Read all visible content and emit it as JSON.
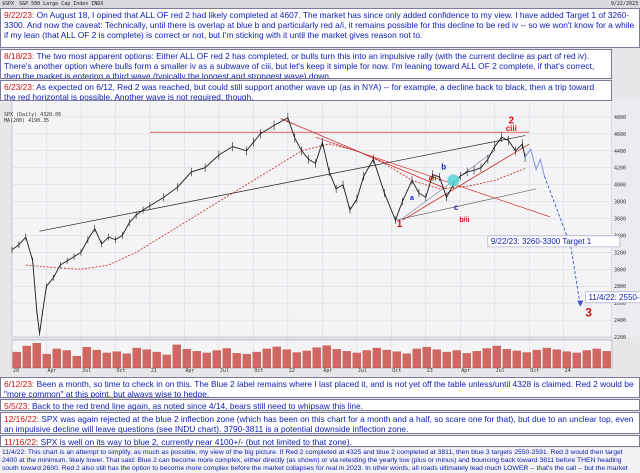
{
  "header": {
    "symbol": "$SPX",
    "name": "S&P 500 Large Cap Index  INDX",
    "right": "9/22/2023"
  },
  "legend": {
    "line1": "SPX (Daily) 4320.06",
    "line2": "MA(200) 4190.35"
  },
  "notes": {
    "n_9_22": {
      "date": "9/22/23:",
      "text": " On August 18, I opined that ALL OF red 2 had likely completed at 4607.  The market has since only added confidence to my view.  I have added Target 1 of 3260-3300.  And now the caveat:  Technically, until there is overlap at blue b and particularly red a/i, it remains possible for this decline to be red iv -- so we won't know for a while if my lean (that ALL OF 2 is complete) is correct or not, but I'm sticking with it until the market gives reason not to."
    },
    "n_8_18": {
      "date": "8/18/23:",
      "text": "  The two most apparent options: Either ALL OF red 2 has completed, or bulls turn this into an impulsive rally (with the current decline as part of red iv).  There's another option where bulls form a smaller iv as a subwave of ciii, but let's keep it simple for now.  I'm leaning toward ALL OF 2 complete, if that's correct, then the market is entering a third wave (typically the longest and strongest wave) down."
    },
    "n_6_23": {
      "date": "6/23/23:",
      "text": " As expected on 6/12, Red 2 was reached, but could still support another wave up (as in NYA) -- for example, a decline back to black, then a trip toward the red horizontal is possible.  Another wave is not required, though."
    },
    "n_6_12": {
      "date": "6/12/23:",
      "text": " Been a month, so time to check in on this.  The Blue 2 label remains where I last placed it, and is not yet off the table unless/until 4328 is claimed.  Red 2 would be \"more common\" at this point, but always wise to hedge."
    },
    "n_5_5": {
      "date": "5/5/23:",
      "text": "  Back to the red trend line again, as noted since 4/14, bears still need to whipsaw this line."
    },
    "n_12_16": {
      "date": "12/16/22:",
      "text": "  SPX was again rejected at the blue 2 inflection zone (which has been on this chart for a month and a half, so scare one for that), but due to an unclear top, even an impulsive decline will leave questions (see INDU chart).  3790-3811 is a potential downside inflection zone."
    },
    "n_11_16": {
      "date": "11/16/22:",
      "text": "  SPX is well on its way to blue 2, currently near 4100+/- (but not limited to that zone)."
    },
    "n_bottom": {
      "text": "11/4/22:  This chart is an attempt to simplify, as much as possible, my view of the big picture.  If Red 2 completed at 4325 and blue 2 completed at 3811, then blue 3 targets 2550-2591.  Red 3 would then target 2400 at the minimum, likely lower.  That said: Blue 2 can become more complex, either directly (as shown) or via retesting the yearly low (plus or minus) and bouncing back toward 3811 before THEN heading south toward 2600.  Red 2 also still has the option to become more complex before the market collapses for real in 2023.  In other words, all roads ultimately lead much LOWER -- that's the call -- but the market still has a few ways to get there."
    }
  },
  "annotations": {
    "target1": "9/22/23:  3260-3300 Target 1",
    "target2": "11/4/22: 2550-2591",
    "wave_1": "1",
    "wave_2": "2",
    "wave_3": "3",
    "wave_ciii": "ciii",
    "wave_b": "b",
    "wave_c": "c",
    "wave_a_i": "a/i",
    "wave_b_ii": "b/ii",
    "wave_a": "a",
    "red_color": "#d21212",
    "blue_color": "#0c1cb3"
  },
  "chart_data": {
    "type": "line",
    "title": "$SPX S&P 500 Large Cap Index INDX",
    "ylim": [
      2200,
      5000
    ],
    "yticks": [
      2200,
      2400,
      2600,
      2800,
      3000,
      3200,
      3400,
      3600,
      3800,
      4000,
      4200,
      4400,
      4600,
      4800
    ],
    "xlim": [
      2020.0,
      2024.35
    ],
    "xticks": [
      {
        "x": 2020.0,
        "label": "20"
      },
      {
        "x": 2020.25,
        "label": "Apr"
      },
      {
        "x": 2020.5,
        "label": "Jul"
      },
      {
        "x": 2020.75,
        "label": "Oct"
      },
      {
        "x": 2021.0,
        "label": "21"
      },
      {
        "x": 2021.25,
        "label": "Apr"
      },
      {
        "x": 2021.5,
        "label": "Jul"
      },
      {
        "x": 2021.75,
        "label": "Oct"
      },
      {
        "x": 2022.0,
        "label": "22"
      },
      {
        "x": 2022.25,
        "label": "Apr"
      },
      {
        "x": 2022.5,
        "label": "Jul"
      },
      {
        "x": 2022.75,
        "label": "Oct"
      },
      {
        "x": 2023.0,
        "label": "23"
      },
      {
        "x": 2023.25,
        "label": "Apr"
      },
      {
        "x": 2023.5,
        "label": "Jul"
      },
      {
        "x": 2023.75,
        "label": "Oct"
      },
      {
        "x": 2024.0,
        "label": "24"
      }
    ],
    "series": [
      {
        "name": "SPX",
        "x": [
          2020.0,
          2020.05,
          2020.1,
          2020.15,
          2020.18,
          2020.2,
          2020.22,
          2020.25,
          2020.3,
          2020.35,
          2020.4,
          2020.45,
          2020.5,
          2020.55,
          2020.6,
          2020.65,
          2020.7,
          2020.75,
          2020.8,
          2020.85,
          2020.9,
          2020.95,
          2021.0,
          2021.1,
          2021.2,
          2021.3,
          2021.4,
          2021.5,
          2021.6,
          2021.7,
          2021.75,
          2021.8,
          2021.9,
          2022.0,
          2022.05,
          2022.1,
          2022.15,
          2022.2,
          2022.25,
          2022.3,
          2022.35,
          2022.4,
          2022.45,
          2022.5,
          2022.55,
          2022.62,
          2022.7,
          2022.78,
          2022.83,
          2022.9,
          2022.95,
          2023.0,
          2023.05,
          2023.1,
          2023.15,
          2023.2,
          2023.25,
          2023.3,
          2023.35,
          2023.4,
          2023.45,
          2023.5,
          2023.55,
          2023.6,
          2023.65,
          2023.7,
          2023.72
        ],
        "y": [
          3230,
          3290,
          3380,
          3100,
          2500,
          2240,
          2480,
          2800,
          2900,
          3050,
          3100,
          3150,
          3200,
          3350,
          3480,
          3300,
          3380,
          3350,
          3400,
          3550,
          3640,
          3700,
          3750,
          3850,
          3970,
          4150,
          4200,
          4350,
          4450,
          4400,
          4500,
          4600,
          4700,
          4790,
          4550,
          4400,
          4300,
          4250,
          4500,
          4150,
          3950,
          4000,
          3700,
          3830,
          4100,
          4300,
          3900,
          3580,
          3800,
          4050,
          3900,
          3850,
          4120,
          4090,
          3850,
          4000,
          4100,
          4150,
          4170,
          4200,
          4300,
          4450,
          4560,
          4520,
          4400,
          4480,
          4320
        ]
      }
    ],
    "ma200": {
      "name": "MA(200)",
      "x": [
        2020.1,
        2020.3,
        2020.5,
        2020.7,
        2020.9,
        2021.1,
        2021.3,
        2021.5,
        2021.7,
        2021.9,
        2022.1,
        2022.3,
        2022.5,
        2022.7,
        2022.9,
        2023.1,
        2023.3,
        2023.5,
        2023.72
      ],
      "y": [
        3050,
        3020,
        3000,
        3050,
        3200,
        3400,
        3600,
        3800,
        4000,
        4200,
        4400,
        4480,
        4400,
        4250,
        4050,
        3950,
        3980,
        4050,
        4190
      ]
    },
    "projection": {
      "x": [
        2023.72,
        2023.76,
        2023.8,
        2023.83,
        2023.86
      ],
      "y": [
        4320,
        4420,
        4180,
        4300,
        4100
      ]
    },
    "target_path": {
      "x": [
        2023.86,
        2024.05,
        2024.12
      ],
      "y": [
        4100,
        3280,
        2570
      ]
    },
    "volume": [
      40,
      55,
      62,
      35,
      48,
      44,
      30,
      52,
      45,
      38,
      41,
      36,
      50,
      46,
      40,
      33,
      58,
      47,
      42,
      38,
      44,
      49,
      37,
      35,
      40,
      48,
      53,
      46,
      39,
      43,
      51,
      56,
      47,
      42,
      38,
      44,
      50,
      45,
      41,
      36,
      48,
      52,
      46,
      40,
      44,
      37,
      42,
      49,
      55,
      47,
      43,
      39,
      45,
      50,
      46,
      41,
      38,
      44,
      48,
      42
    ]
  }
}
